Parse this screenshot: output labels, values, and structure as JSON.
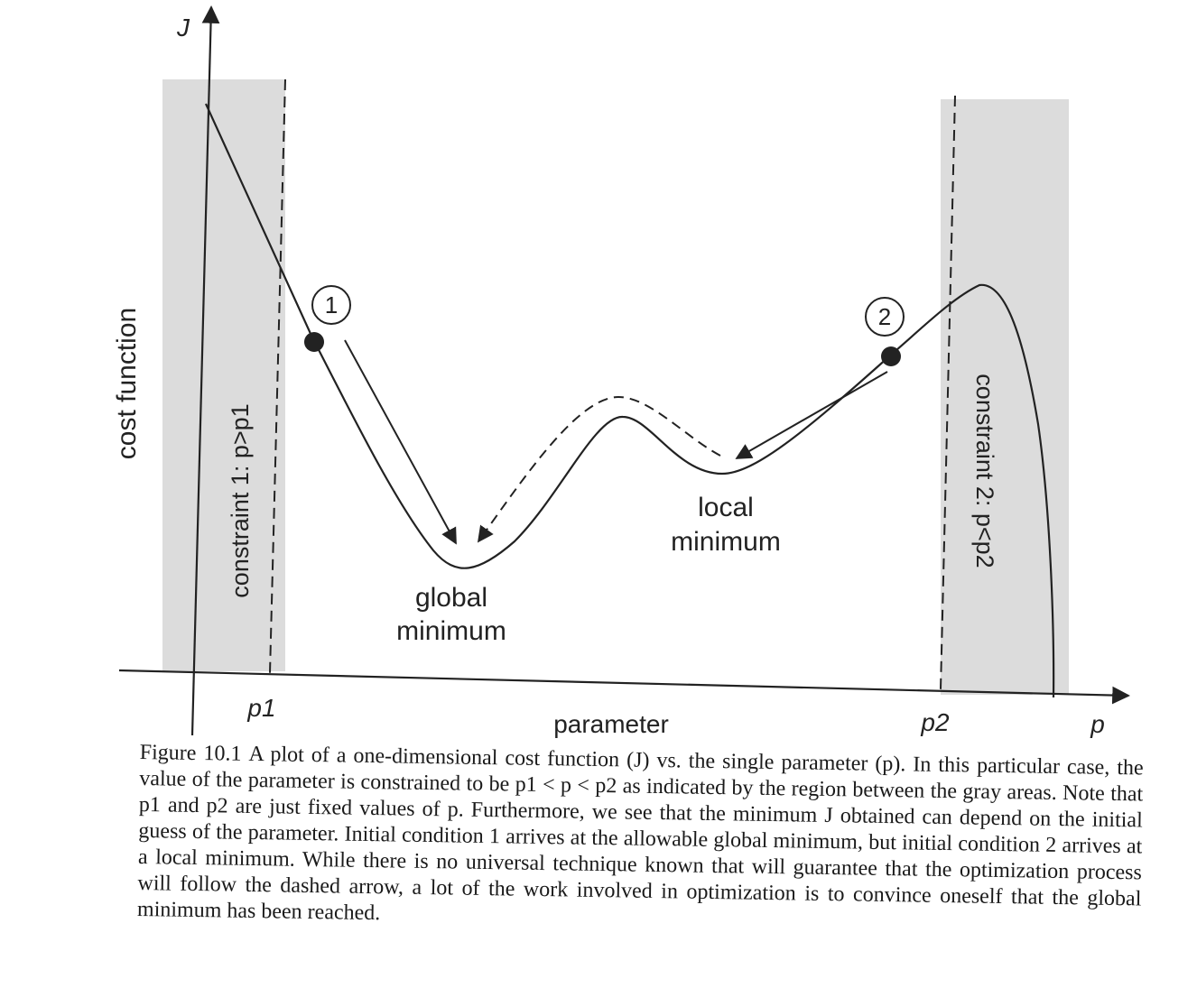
{
  "figure": {
    "y_axis_symbol": "J",
    "y_axis_title": "cost function",
    "x_axis_symbol": "p",
    "x_axis_title": "parameter",
    "tick_p1": "p1",
    "tick_p2": "p2",
    "constraint_1": "constraint 1: p>p1",
    "constraint_2": "constraint 2: p<p2",
    "marker_1": "1",
    "marker_2": "2",
    "global_min_line1": "global",
    "global_min_line2": "minimum",
    "local_min_line1": "local",
    "local_min_line2": "minimum",
    "shade_color": "#dcdcdc"
  },
  "caption": {
    "label": "Figure 10.1",
    "text": "A plot of a one-dimensional cost function (J) vs. the single parameter (p). In this particular case, the value of the parameter is constrained to be p1 < p < p2 as indicated by the region between the gray areas. Note that p1 and p2 are just fixed values of p. Furthermore, we see that the minimum J obtained can depend on the initial guess of the parameter. Initial condition 1 arrives at the allowable global minimum, but initial condition 2 arrives at a local minimum. While there is no universal technique known that will guarantee that the optimization process will follow the dashed arrow, a lot of the work involved in optimization is to convince oneself that the global minimum has been reached."
  }
}
